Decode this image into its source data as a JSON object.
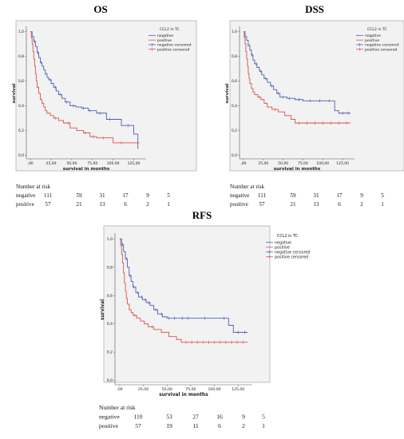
{
  "chart_data": [
    {
      "type": "line",
      "title": "OS",
      "xlabel": "survival in months",
      "ylabel": "survival",
      "xlim": [
        -5,
        140
      ],
      "ylim": [
        -0.03,
        1.03
      ],
      "x_ticks": [
        0,
        25,
        50,
        75,
        100,
        125
      ],
      "x_tick_labels": [
        ",00",
        "25,00",
        "50,00",
        "75,00",
        "100,00",
        "125,00"
      ],
      "y_ticks": [
        0,
        0.2,
        0.4,
        0.6,
        0.8,
        1.0
      ],
      "y_tick_labels": [
        "0,0",
        "0,2",
        "0,4",
        "0,6",
        "0,8",
        "1,0"
      ],
      "legend_title": "CCL2 in TC",
      "legend_position": "top-right",
      "legend": [
        "negative",
        "positive",
        "negative censored",
        "positive censored"
      ],
      "series": [
        {
          "name": "negative",
          "color": "#4a5fb5",
          "x": [
            0,
            2,
            4,
            6,
            8,
            10,
            12,
            14,
            16,
            18,
            20,
            22,
            25,
            28,
            31,
            34,
            38,
            42,
            48,
            55,
            62,
            70,
            80,
            92,
            110,
            125,
            130
          ],
          "y": [
            1.0,
            0.96,
            0.92,
            0.88,
            0.83,
            0.79,
            0.75,
            0.72,
            0.69,
            0.66,
            0.63,
            0.61,
            0.58,
            0.55,
            0.52,
            0.49,
            0.46,
            0.43,
            0.4,
            0.39,
            0.38,
            0.36,
            0.34,
            0.29,
            0.24,
            0.17,
            0.05
          ],
          "censored_x": [
            5,
            9,
            13,
            18,
            24,
            30,
            36,
            44,
            52,
            64,
            72,
            84,
            96,
            118
          ]
        },
        {
          "name": "positive",
          "color": "#d9534f",
          "x": [
            0,
            1,
            2,
            3,
            4,
            5,
            6,
            7,
            8,
            10,
            12,
            14,
            16,
            18,
            20,
            24,
            28,
            34,
            40,
            48,
            56,
            64,
            72,
            80,
            100,
            125,
            132
          ],
          "y": [
            1.0,
            0.95,
            0.9,
            0.84,
            0.78,
            0.72,
            0.66,
            0.6,
            0.55,
            0.5,
            0.45,
            0.42,
            0.39,
            0.36,
            0.34,
            0.32,
            0.3,
            0.28,
            0.26,
            0.22,
            0.2,
            0.18,
            0.15,
            0.14,
            0.1,
            0.1,
            0.1
          ],
          "censored_x": [
            30,
            46,
            66,
            76,
            88,
            110
          ]
        }
      ],
      "risk_table": {
        "title": "Number at risk",
        "rows": [
          {
            "label": "negative",
            "values": [
              "111",
              "59",
              "31",
              "17",
              "9",
              "5"
            ]
          },
          {
            "label": "positive",
            "values": [
              "57",
              "21",
              "13",
              "6",
              "2",
              "1"
            ]
          }
        ]
      }
    },
    {
      "type": "line",
      "title": "DSS",
      "xlabel": "survival in months",
      "ylabel": "survival",
      "xlim": [
        -5,
        140
      ],
      "ylim": [
        -0.03,
        1.03
      ],
      "x_ticks": [
        0,
        25,
        50,
        75,
        100,
        125
      ],
      "x_tick_labels": [
        ",00",
        "25,00",
        "50,00",
        "75,00",
        "100,00",
        "125,00"
      ],
      "y_ticks": [
        0,
        0.2,
        0.4,
        0.6,
        0.8,
        1.0
      ],
      "y_tick_labels": [
        "0,0",
        "0,2",
        "0,4",
        "0,6",
        "0,8",
        "1,0"
      ],
      "legend_title": "CCL2 in TC",
      "legend_position": "top-right",
      "legend": [
        "negative",
        "positive",
        "negative censored",
        "positive censored"
      ],
      "series": [
        {
          "name": "negative",
          "color": "#4a5fb5",
          "x": [
            0,
            2,
            4,
            6,
            8,
            10,
            12,
            14,
            17,
            20,
            23,
            26,
            30,
            34,
            38,
            42,
            46,
            55,
            65,
            75,
            100,
            115,
            120,
            135
          ],
          "y": [
            1.0,
            0.96,
            0.93,
            0.89,
            0.85,
            0.81,
            0.77,
            0.74,
            0.71,
            0.68,
            0.65,
            0.62,
            0.59,
            0.56,
            0.53,
            0.5,
            0.47,
            0.46,
            0.45,
            0.44,
            0.44,
            0.36,
            0.34,
            0.34
          ],
          "censored_x": [
            6,
            11,
            16,
            22,
            28,
            36,
            44,
            50,
            58,
            70,
            84,
            96,
            108,
            125,
            132
          ]
        },
        {
          "name": "positive",
          "color": "#d9534f",
          "x": [
            0,
            1,
            2,
            3,
            4,
            5,
            6,
            7,
            8,
            10,
            12,
            14,
            18,
            22,
            26,
            30,
            36,
            44,
            52,
            60,
            65,
            135
          ],
          "y": [
            1.0,
            0.95,
            0.9,
            0.84,
            0.78,
            0.72,
            0.66,
            0.62,
            0.58,
            0.54,
            0.51,
            0.49,
            0.47,
            0.45,
            0.42,
            0.39,
            0.37,
            0.35,
            0.32,
            0.29,
            0.26,
            0.26
          ],
          "censored_x": [
            20,
            40,
            70,
            80,
            90,
            100,
            110,
            120,
            130
          ]
        }
      ],
      "risk_table": {
        "title": "Number at risk",
        "rows": [
          {
            "label": "negative",
            "values": [
              "111",
              "59",
              "31",
              "17",
              "9",
              "5"
            ]
          },
          {
            "label": "positive",
            "values": [
              "57",
              "21",
              "13",
              "6",
              "2",
              "1"
            ]
          }
        ]
      }
    },
    {
      "type": "line",
      "title": "RFS",
      "xlabel": "survival in months",
      "ylabel": "survival",
      "xlim": [
        -5,
        140
      ],
      "ylim": [
        -0.03,
        1.03
      ],
      "x_ticks": [
        0,
        25,
        50,
        75,
        100,
        125
      ],
      "x_tick_labels": [
        ",00",
        "25,00",
        "50,00",
        "75,00",
        "100,00",
        "125,00"
      ],
      "y_ticks": [
        0,
        0.2,
        0.4,
        0.6,
        0.8,
        1.0
      ],
      "y_tick_labels": [
        "0,0",
        "0,2",
        "0,4",
        "0,6",
        "0,8",
        "1,0"
      ],
      "legend_title": "CCL2 in TC",
      "legend_position": "top-right",
      "legend": [
        "negative",
        "positive",
        "negative censored",
        "positive censored"
      ],
      "series": [
        {
          "name": "negative",
          "color": "#4a5fb5",
          "x": [
            0,
            2,
            4,
            6,
            8,
            10,
            12,
            14,
            17,
            20,
            24,
            28,
            32,
            36,
            40,
            45,
            50,
            60,
            80,
            100,
            115,
            120,
            135
          ],
          "y": [
            1.0,
            0.96,
            0.91,
            0.86,
            0.8,
            0.74,
            0.7,
            0.66,
            0.62,
            0.59,
            0.57,
            0.55,
            0.53,
            0.5,
            0.47,
            0.45,
            0.44,
            0.44,
            0.44,
            0.44,
            0.39,
            0.34,
            0.34
          ],
          "censored_x": [
            3,
            7,
            11,
            15,
            19,
            23,
            27,
            31,
            38,
            44,
            52,
            58,
            66,
            72,
            90,
            110,
            125,
            132
          ]
        },
        {
          "name": "positive",
          "color": "#d9534f",
          "x": [
            0,
            1,
            2,
            3,
            4,
            5,
            6,
            7,
            8,
            10,
            12,
            14,
            18,
            22,
            26,
            30,
            36,
            44,
            52,
            60,
            65,
            135
          ],
          "y": [
            1.0,
            0.95,
            0.89,
            0.83,
            0.76,
            0.69,
            0.63,
            0.58,
            0.54,
            0.5,
            0.48,
            0.46,
            0.44,
            0.42,
            0.4,
            0.38,
            0.36,
            0.34,
            0.31,
            0.29,
            0.27,
            0.27
          ],
          "censored_x": [
            16,
            34,
            70,
            76,
            82,
            88,
            94,
            100,
            106,
            112,
            118,
            124,
            130
          ]
        }
      ],
      "risk_table": {
        "title": "Number at risk",
        "rows": [
          {
            "label": "negative",
            "values": [
              "110",
              "53",
              "27",
              "16",
              "9",
              "5"
            ]
          },
          {
            "label": "positive",
            "values": [
              "57",
              "19",
              "11",
              "6",
              "2",
              "1"
            ]
          }
        ]
      }
    }
  ]
}
